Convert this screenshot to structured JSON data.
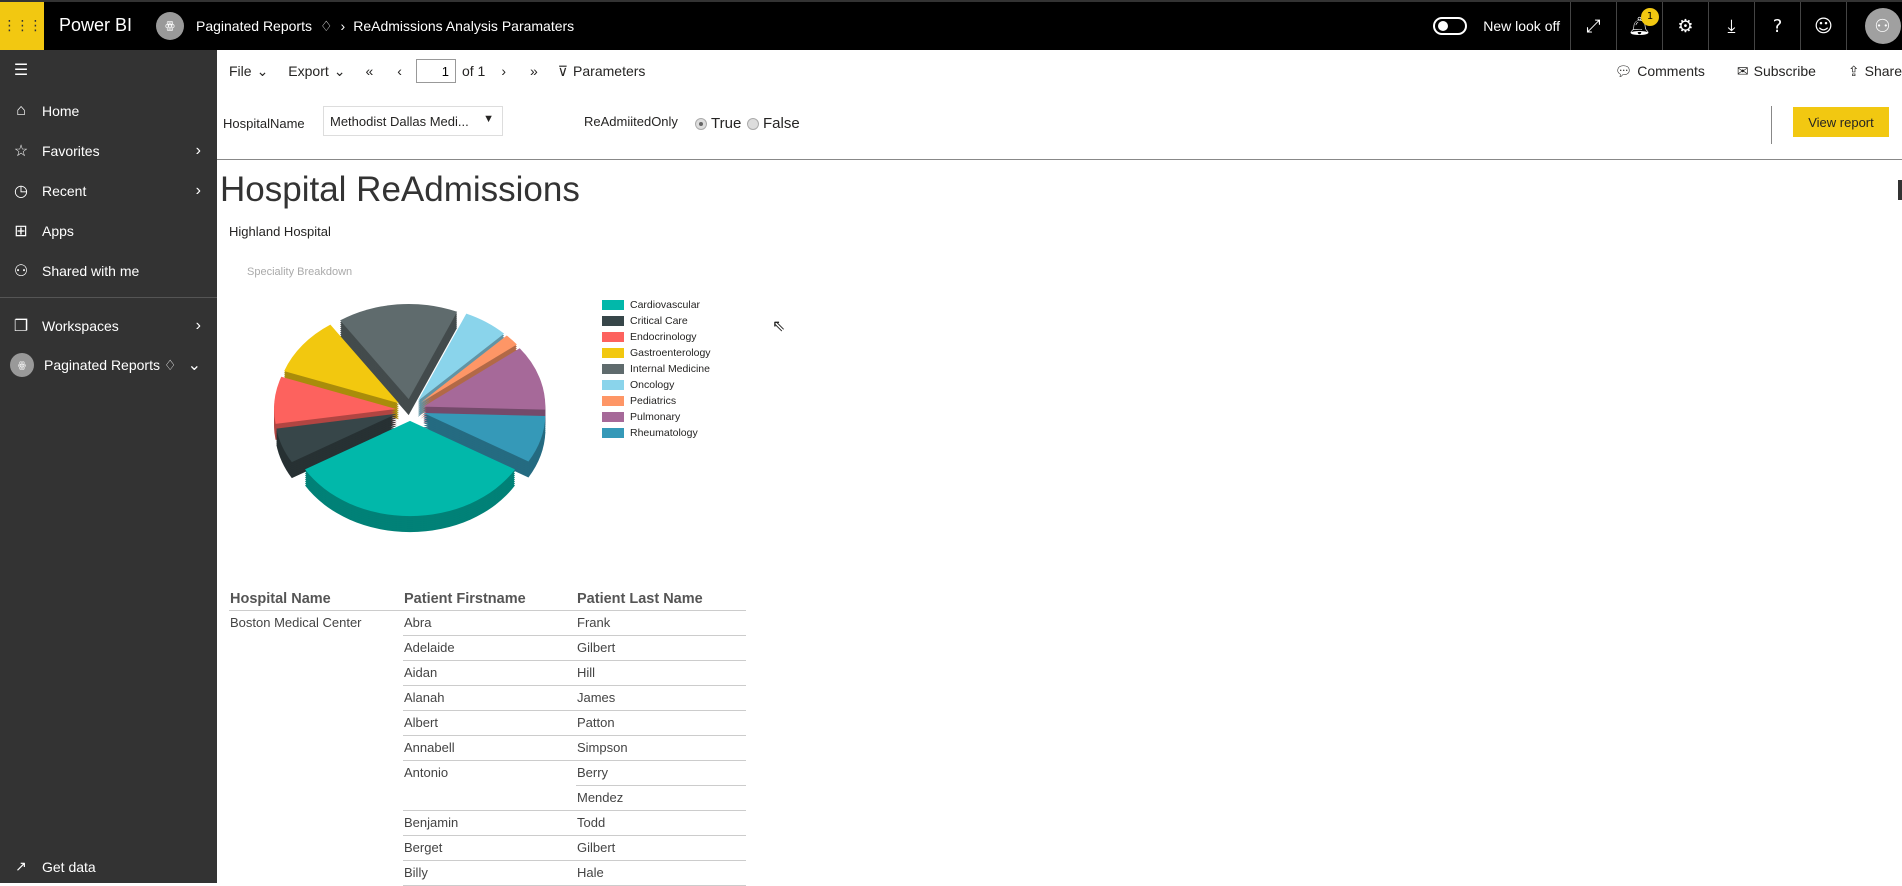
{
  "topbar": {
    "app": "Power BI",
    "workspace": "Paginated Reports",
    "report": "ReAdmissions Analysis Paramaters",
    "new_look": "New look off",
    "notifications": "1"
  },
  "sidebar": {
    "items": [
      {
        "label": "Home",
        "icon": "home-icon"
      },
      {
        "label": "Favorites",
        "icon": "star-icon"
      },
      {
        "label": "Recent",
        "icon": "clock-icon"
      },
      {
        "label": "Apps",
        "icon": "apps-icon"
      },
      {
        "label": "Shared with me",
        "icon": "shared-icon"
      },
      {
        "label": "Workspaces",
        "icon": "workspaces-icon"
      },
      {
        "label": "Paginated Reports",
        "icon": "workspace-avatar"
      }
    ],
    "get_data": "Get data"
  },
  "toolbar": {
    "file": "File",
    "export": "Export",
    "page": "1",
    "of": "of 1",
    "parameters": "Parameters",
    "comments": "Comments",
    "subscribe": "Subscribe",
    "share": "Share"
  },
  "params": {
    "hospital_label": "HospitalName",
    "hospital_value": "Methodist Dallas Medi...",
    "readmit_label": "ReAdmiitedOnly",
    "true_label": "True",
    "false_label": "False",
    "selected": "True",
    "view_report": "View report"
  },
  "report": {
    "title": "Hospital ReAdmissions",
    "subtitle": "Highland Hospital"
  },
  "chart_data": {
    "type": "pie",
    "title": "Speciality Breakdown",
    "style": "3d-exploded",
    "legend_position": "right",
    "categories": [
      "Cardiovascular",
      "Critical Care",
      "Endocrinology",
      "Gastroenterology",
      "Internal Medicine",
      "Oncology",
      "Pediatrics",
      "Pulmonary",
      "Rheumatology"
    ],
    "values": [
      33,
      6,
      8,
      10,
      16,
      6,
      2,
      11,
      8
    ],
    "colors": [
      "#01b8aa",
      "#374649",
      "#fd625e",
      "#f2c80f",
      "#5f6b6d",
      "#8ad4eb",
      "#fe9666",
      "#a66999",
      "#3599b8"
    ]
  },
  "table": {
    "headers": [
      "Hospital Name",
      "Patient Firstname",
      "Patient Last Name"
    ],
    "hospital": "Boston Medical Center",
    "rows": [
      [
        "Abra",
        "Frank"
      ],
      [
        "Adelaide",
        "Gilbert"
      ],
      [
        "Aidan",
        "Hill"
      ],
      [
        "Alanah",
        "James"
      ],
      [
        "Albert",
        "Patton"
      ],
      [
        "Annabell",
        "Simpson"
      ],
      [
        "Antonio",
        "Berry"
      ],
      [
        "",
        "Mendez"
      ],
      [
        "Benjamin",
        "Todd"
      ],
      [
        "Berget",
        "Gilbert"
      ],
      [
        "Billy",
        "Hale"
      ]
    ]
  }
}
